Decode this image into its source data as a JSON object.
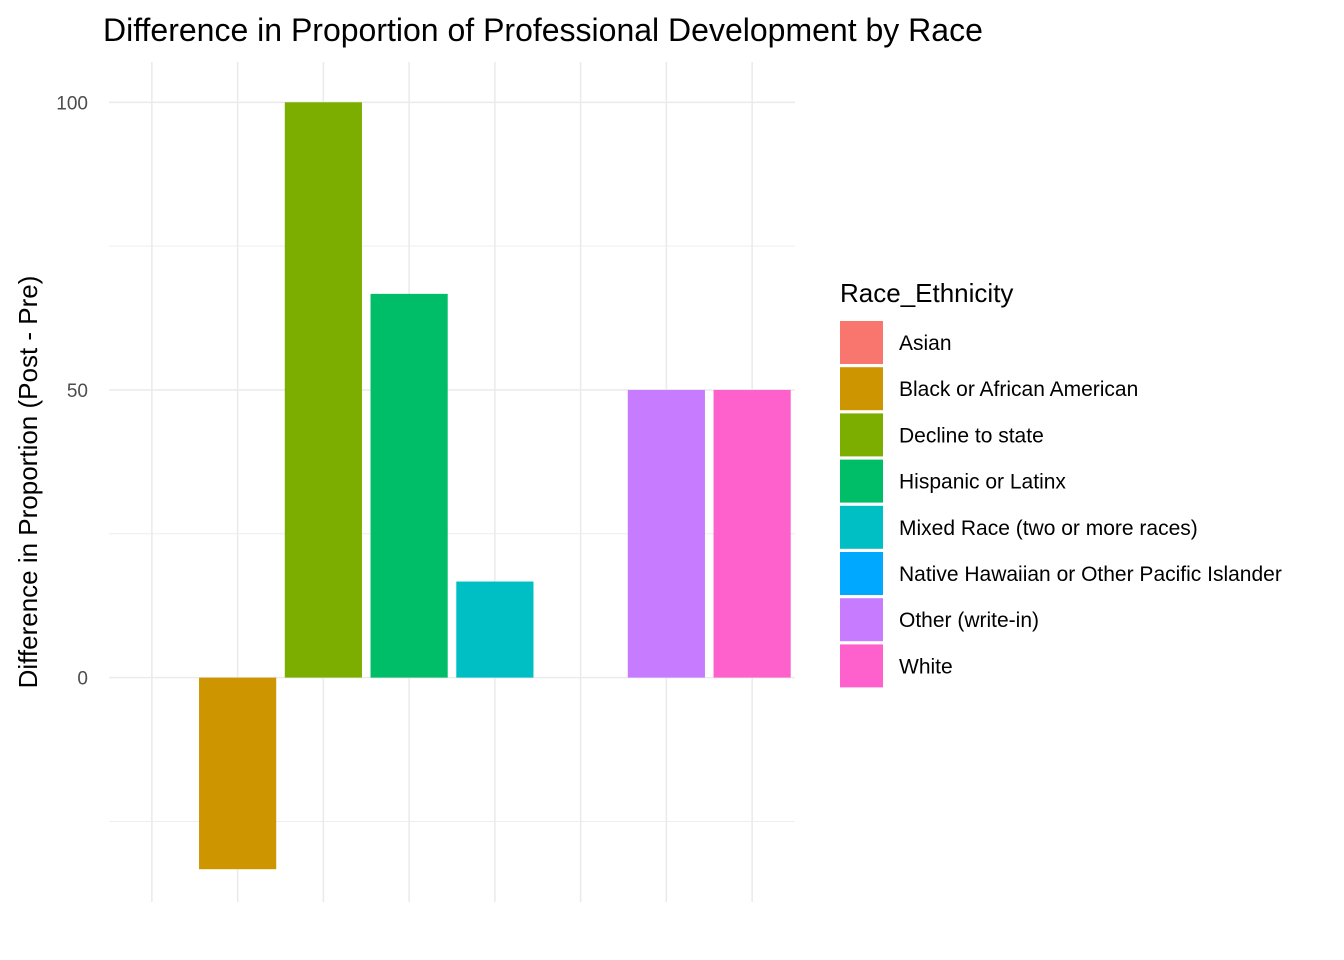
{
  "chart_data": {
    "type": "bar",
    "title": "Difference in Proportion of Professional Development by Race",
    "xlabel": "",
    "ylabel": "Difference in Proportion (Post - Pre)",
    "ylim": [
      -39,
      107
    ],
    "yticks": [
      0,
      50,
      100
    ],
    "grid": true,
    "legend": {
      "title": "Race_Ethnicity",
      "placement": "right"
    },
    "categories": [
      "Asian",
      "Black or African American",
      "Decline to state",
      "Hispanic or Latinx",
      "Mixed Race (two or more races)",
      "Native Hawaiian or Other Pacific Islander",
      "Other (write-in)",
      "White"
    ],
    "values": [
      0,
      -33.3,
      100,
      66.7,
      16.7,
      0,
      50,
      50
    ],
    "colors": [
      "#F8766D",
      "#CD9600",
      "#7CAE00",
      "#00BE67",
      "#00BFC4",
      "#00A9FF",
      "#C77CFF",
      "#FF61CC"
    ]
  }
}
